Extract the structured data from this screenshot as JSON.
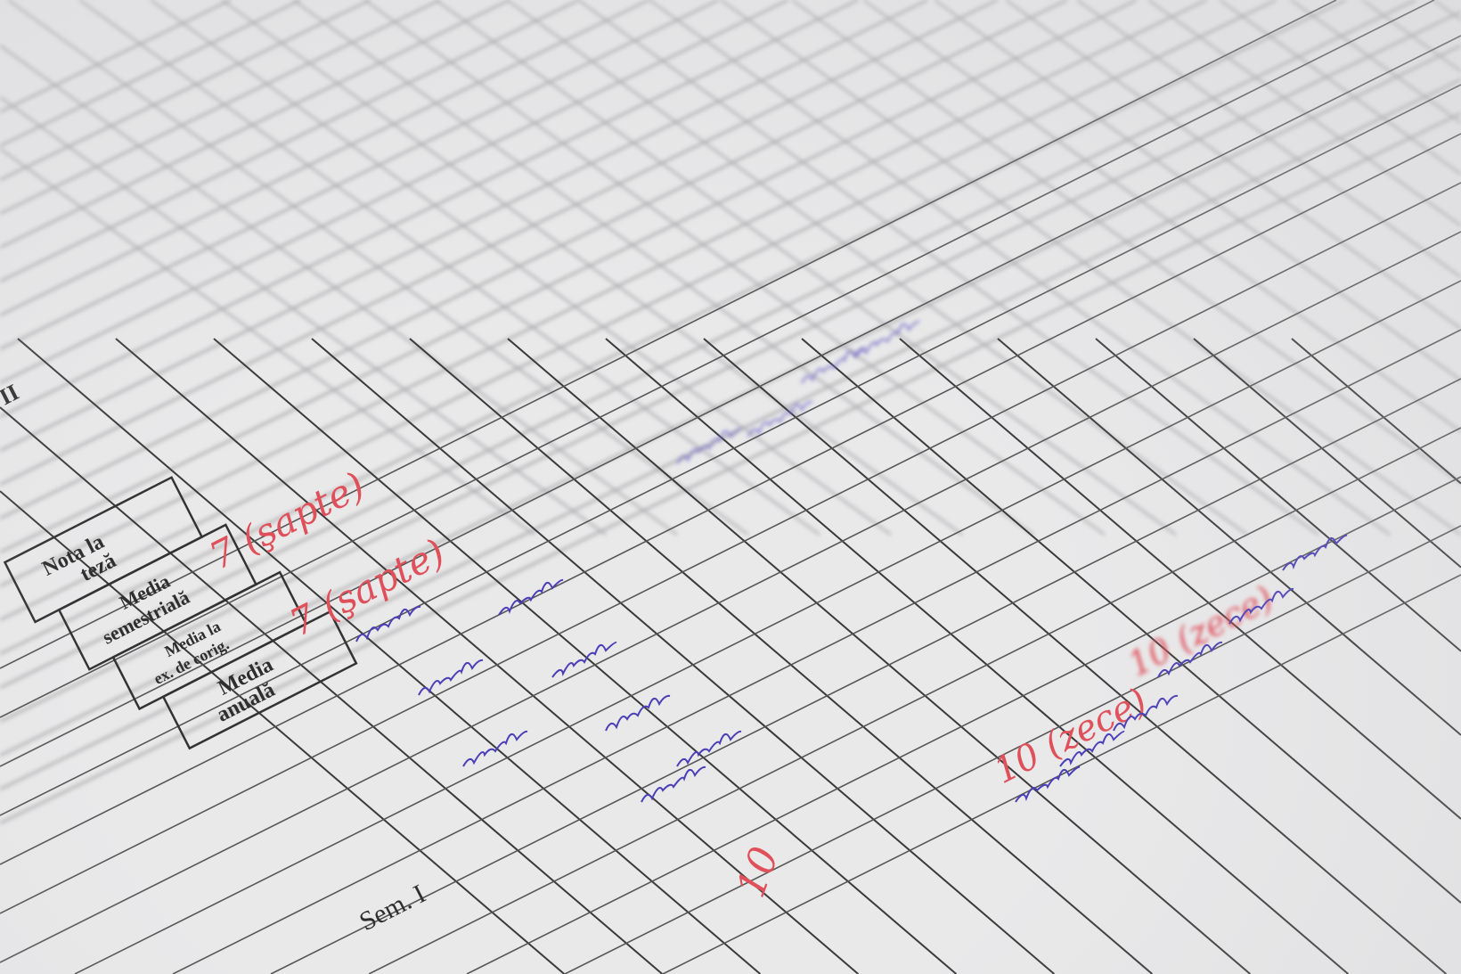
{
  "register": {
    "row_labels": {
      "nota_la_teza": [
        "Nota la",
        "teză"
      ],
      "media_semestriala": [
        "Media",
        "semestrială"
      ],
      "media_corigenta": [
        "Media la",
        "ex. de corig."
      ],
      "media_anuala": [
        "Media",
        "anuală"
      ]
    },
    "semester_label": "Sem. I",
    "roman_numeral": "II",
    "handwritten_red": {
      "teza_grade": "7 (şapte)",
      "semestrial_grade": "7 (şapte)",
      "grade_ten": "10",
      "grade_ten_words_1": "10 (zece)",
      "grade_ten_words_2": "10 (zece)"
    },
    "ink_colors": {
      "paper": "#e9e9ea",
      "lines": "#3a3a3a",
      "red_ink": "#e0505a",
      "blue_ink": "#4a3fb8"
    }
  }
}
